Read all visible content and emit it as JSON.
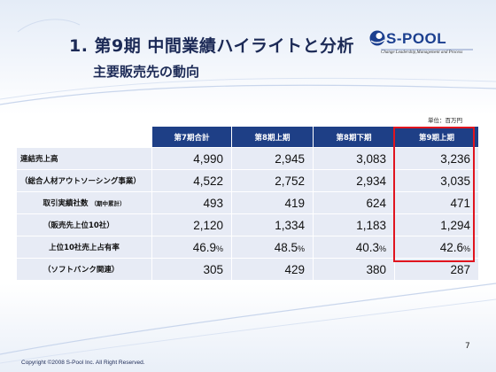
{
  "slide": {
    "title": "1. 第9期 中間業績ハイライトと分析",
    "subtitle": "主要販売先の動向",
    "unit": "単位：百万円",
    "page_number": "7",
    "copyright": "Copyright ©2008 S-Pool Inc. All Right Reserved."
  },
  "logo": {
    "name": "S-POOL",
    "tagline": "Change Leadership,Management and Process"
  },
  "table": {
    "headers": [
      "第7期合計",
      "第8期上期",
      "第8期下期",
      "第9期上期"
    ],
    "highlighted_column": "第9期上期",
    "rows": [
      {
        "label": "連結売上高",
        "values": [
          "4,990",
          "2,945",
          "3,083",
          "3,236"
        ]
      },
      {
        "label": "（総合人材アウトソーシング事業）",
        "values": [
          "4,522",
          "2,752",
          "2,934",
          "3,035"
        ]
      },
      {
        "label": "取引実績社数",
        "label_small": "（期中累計）",
        "values": [
          "493",
          "419",
          "624",
          "471"
        ]
      },
      {
        "label": "（販売先上位10社）",
        "values": [
          "2,120",
          "1,334",
          "1,183",
          "1,294"
        ]
      },
      {
        "label": "上位10社売上占有率",
        "values": [
          "46.9",
          "48.5",
          "40.3",
          "42.6"
        ],
        "suffix": "%"
      },
      {
        "label": "（ソフトバンク関連）",
        "values": [
          "305",
          "429",
          "380",
          "287"
        ]
      }
    ]
  },
  "colors": {
    "header_bg": "#1e3f86",
    "cell_bg": "#e7ebf5",
    "highlight_border": "#e0141e",
    "title_text": "#1c2a56"
  }
}
